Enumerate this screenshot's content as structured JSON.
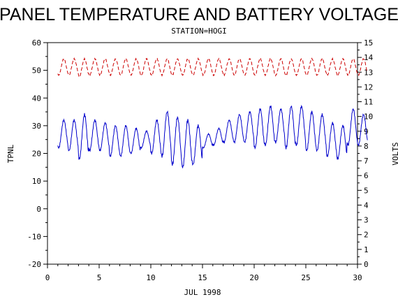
{
  "chart_data": {
    "type": "line",
    "title": "PANEL TEMPERATURE AND BATTERY VOLTAGE",
    "subtitle": "STATION=HOGI",
    "xlabel": "JUL 1998",
    "ylabel_left": "TPNL",
    "ylabel_right": "VOLTS",
    "xlim": [
      0,
      30
    ],
    "ylim_left": [
      -20,
      60
    ],
    "ylim_right": [
      0,
      15
    ],
    "x_ticks": [
      0,
      5,
      10,
      15,
      20,
      25,
      30
    ],
    "y_ticks_left": [
      -20,
      -10,
      0,
      10,
      20,
      30,
      40,
      50,
      60
    ],
    "y_ticks_right": [
      0,
      1,
      2,
      3,
      4,
      5,
      6,
      7,
      8,
      9,
      10,
      11,
      12,
      13,
      14,
      15
    ],
    "grid": false,
    "series": [
      {
        "axis": "left",
        "color": "#0000cc",
        "style": "solid",
        "daily": [
          [
            1,
            22,
            32
          ],
          [
            2,
            21,
            32
          ],
          [
            3,
            18,
            34
          ],
          [
            4,
            21,
            32
          ],
          [
            5,
            21,
            31
          ],
          [
            6,
            19,
            30
          ],
          [
            7,
            19,
            30
          ],
          [
            8,
            20,
            29
          ],
          [
            9,
            22,
            28
          ],
          [
            10,
            20,
            32
          ],
          [
            11,
            19,
            35
          ],
          [
            12,
            16,
            33
          ],
          [
            13,
            15,
            32
          ],
          [
            14,
            16,
            30
          ],
          [
            15,
            22,
            27
          ],
          [
            16,
            23,
            29
          ],
          [
            17,
            24,
            32
          ],
          [
            18,
            24,
            34
          ],
          [
            19,
            24,
            35
          ],
          [
            20,
            22,
            36
          ],
          [
            21,
            23,
            37
          ],
          [
            22,
            24,
            36
          ],
          [
            23,
            22,
            37
          ],
          [
            24,
            23,
            37
          ],
          [
            25,
            21,
            35
          ],
          [
            26,
            21,
            34
          ],
          [
            27,
            19,
            31
          ],
          [
            28,
            18,
            30
          ],
          [
            29,
            23,
            36
          ],
          [
            30,
            23,
            34
          ]
        ]
      },
      {
        "axis": "right",
        "color": "#cc0000",
        "style": "dashed",
        "daily": [
          [
            1,
            12.8,
            13.9
          ],
          [
            2,
            12.8,
            13.9
          ],
          [
            3,
            12.7,
            13.9
          ],
          [
            4,
            12.8,
            13.9
          ],
          [
            5,
            12.8,
            13.9
          ],
          [
            6,
            12.8,
            13.9
          ],
          [
            7,
            12.8,
            13.9
          ],
          [
            8,
            12.8,
            13.9
          ],
          [
            9,
            12.8,
            13.9
          ],
          [
            10,
            12.8,
            13.9
          ],
          [
            11,
            12.8,
            13.9
          ],
          [
            12,
            12.8,
            13.9
          ],
          [
            13,
            12.8,
            13.9
          ],
          [
            14,
            12.8,
            13.9
          ],
          [
            15,
            12.8,
            13.9
          ],
          [
            16,
            12.8,
            13.9
          ],
          [
            17,
            12.8,
            13.9
          ],
          [
            18,
            12.8,
            13.9
          ],
          [
            19,
            12.8,
            13.9
          ],
          [
            20,
            12.8,
            13.9
          ],
          [
            21,
            12.8,
            13.9
          ],
          [
            22,
            12.8,
            13.9
          ],
          [
            23,
            12.8,
            13.9
          ],
          [
            24,
            12.8,
            13.9
          ],
          [
            25,
            12.8,
            13.9
          ],
          [
            26,
            12.8,
            13.9
          ],
          [
            27,
            12.8,
            13.9
          ],
          [
            28,
            12.8,
            13.9
          ],
          [
            29,
            12.8,
            13.9
          ],
          [
            30,
            12.8,
            13.9
          ]
        ]
      }
    ]
  }
}
